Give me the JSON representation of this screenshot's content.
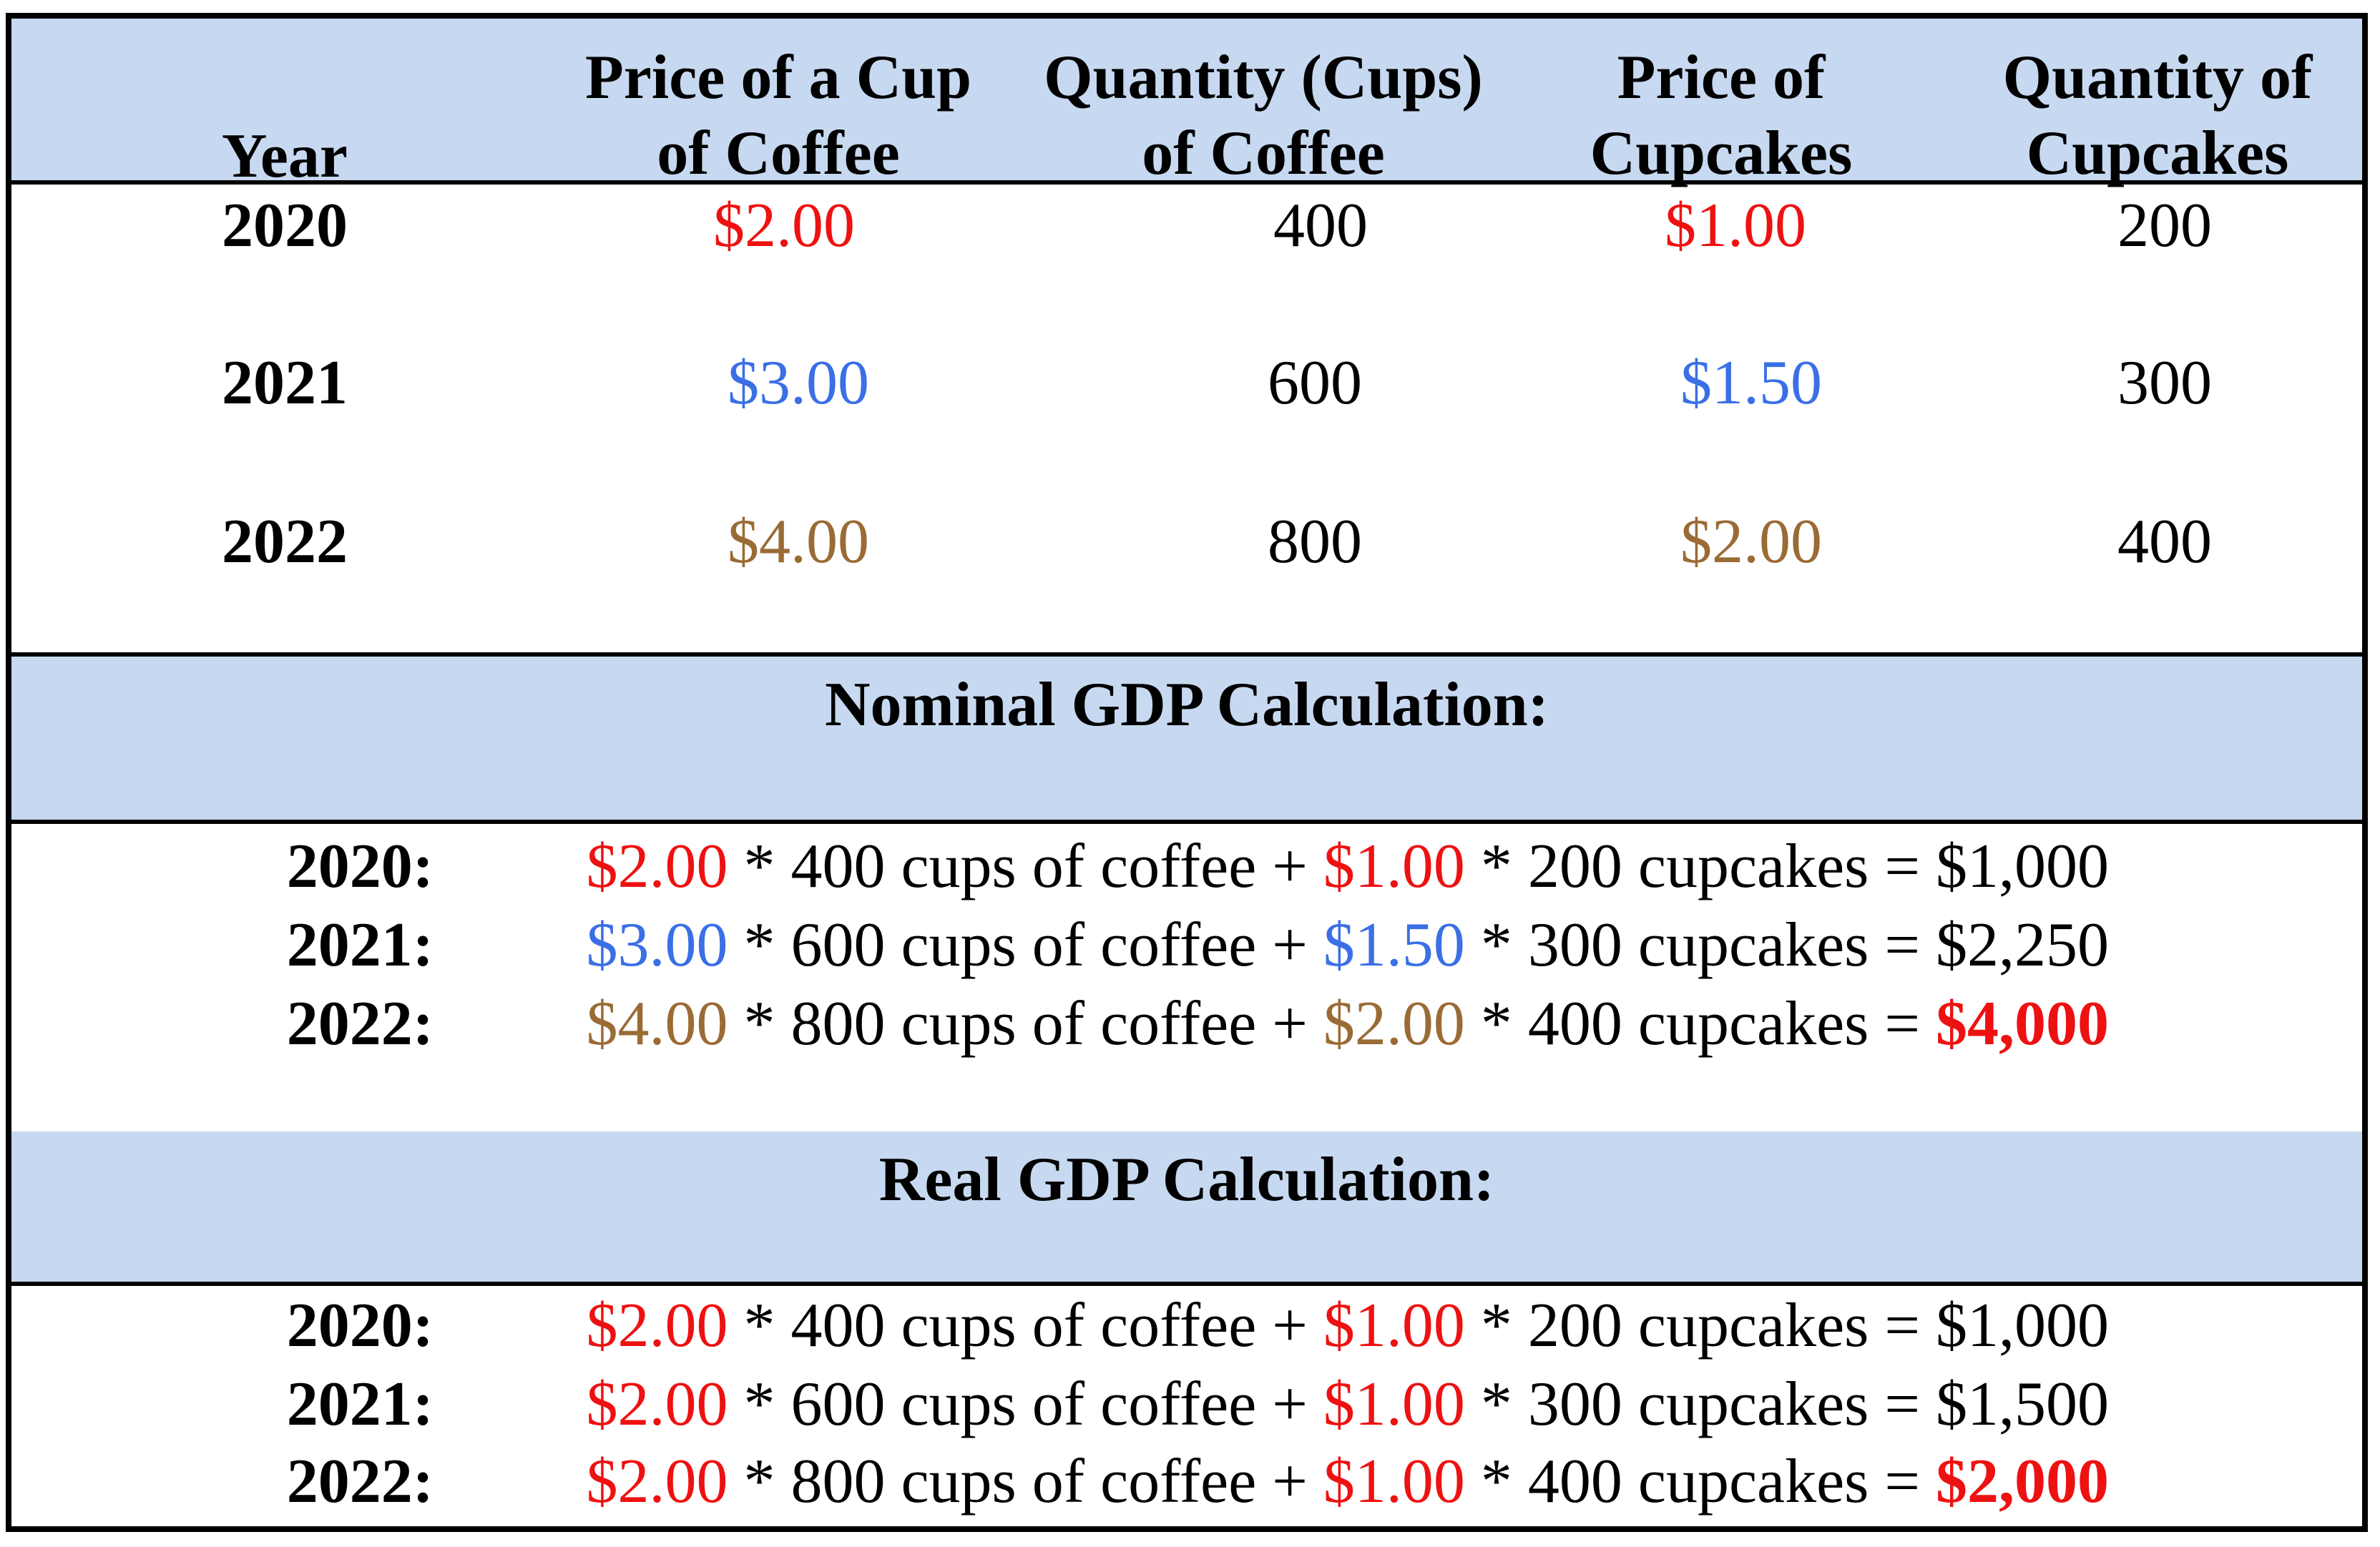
{
  "colors": {
    "header_band": "#c7d9f0",
    "price_2020": "#ee1111",
    "price_2021": "#3a6fe6",
    "price_2022": "#9a6b35",
    "highlight": "#ee1111"
  },
  "table": {
    "headers": {
      "year": "Year",
      "coffee_price": [
        "Price of a Cup",
        "of Coffee"
      ],
      "coffee_qty": [
        "Quantity (Cups)",
        "of Coffee"
      ],
      "cupcake_price": [
        "Price of",
        "Cupcakes"
      ],
      "cupcake_qty": [
        "Quantity of",
        "Cupcakes"
      ]
    },
    "rows": [
      {
        "year": "2020",
        "coffee_price": "$2.00",
        "coffee_qty": "400",
        "cupcake_price": "$1.00",
        "cupcake_qty": "200"
      },
      {
        "year": "2021",
        "coffee_price": "$3.00",
        "coffee_qty": "600",
        "cupcake_price": "$1.50",
        "cupcake_qty": "300"
      },
      {
        "year": "2022",
        "coffee_price": "$4.00",
        "coffee_qty": "800",
        "cupcake_price": "$2.00",
        "cupcake_qty": "400"
      }
    ]
  },
  "nominal": {
    "title": "Nominal GDP Calculation:",
    "lines": [
      {
        "year": "2020:",
        "p1": "$2.00",
        "t1": " * 400 cups of coffee + ",
        "p2": "$1.00",
        "t2": " * 200 cupcakes = ",
        "total": "$1,000"
      },
      {
        "year": "2021:",
        "p1": "$3.00",
        "t1": " * 600 cups of coffee + ",
        "p2": "$1.50",
        "t2": " * 300 cupcakes = ",
        "total": "$2,250"
      },
      {
        "year": "2022:",
        "p1": "$4.00",
        "t1": " * 800 cups of coffee + ",
        "p2": "$2.00",
        "t2": " * 400 cupcakes = ",
        "total": "$4,000"
      }
    ]
  },
  "real": {
    "title": "Real GDP Calculation:",
    "lines": [
      {
        "year": "2020:",
        "p1": "$2.00",
        "t1": " * 400 cups of coffee + ",
        "p2": "$1.00",
        "t2": " * 200 cupcakes = ",
        "total": "$1,000"
      },
      {
        "year": "2021:",
        "p1": "$2.00",
        "t1": " * 600 cups of coffee + ",
        "p2": "$1.00",
        "t2": " * 300 cupcakes = ",
        "total": "$1,500"
      },
      {
        "year": "2022:",
        "p1": "$2.00",
        "t1": " * 800 cups of coffee + ",
        "p2": "$1.00",
        "t2": " * 400 cupcakes = ",
        "total": "$2,000"
      }
    ]
  }
}
